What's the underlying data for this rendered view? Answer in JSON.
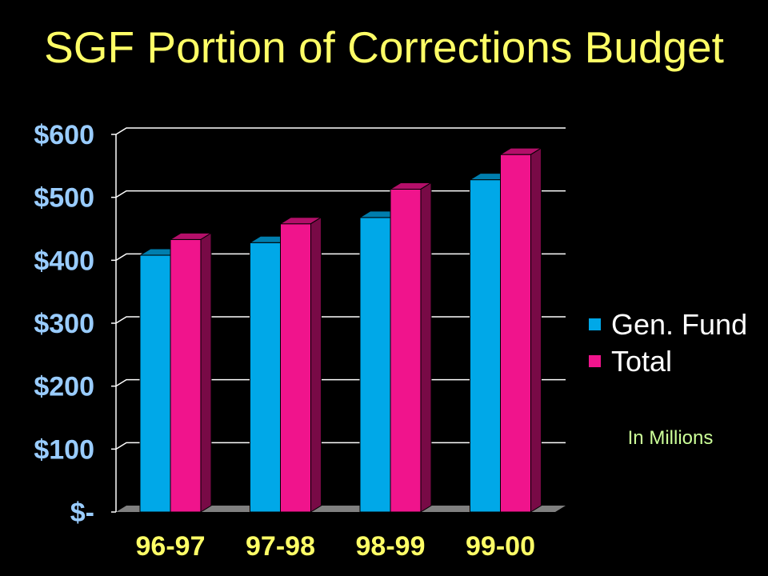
{
  "chart_data": {
    "type": "bar",
    "title": "SGF Portion of Corrections Budget",
    "categories": [
      "96-97",
      "97-98",
      "98-99",
      "99-00"
    ],
    "series": [
      {
        "name": "Gen. Fund",
        "values": [
          408,
          428,
          468,
          528
        ],
        "color": "#00A8E8"
      },
      {
        "name": "Total",
        "values": [
          433,
          458,
          513,
          568
        ],
        "color": "#F0148C"
      }
    ],
    "ylim": [
      0,
      600
    ],
    "yticks": [
      {
        "value": 0,
        "label": "$-"
      },
      {
        "value": 100,
        "label": "$100"
      },
      {
        "value": 200,
        "label": "$200"
      },
      {
        "value": 300,
        "label": "$300"
      },
      {
        "value": 400,
        "label": "$400"
      },
      {
        "value": 500,
        "label": "$500"
      },
      {
        "value": 600,
        "label": "$600"
      }
    ],
    "grid": true,
    "legend": "right",
    "annotation": "In Millions",
    "colors": {
      "background": "#000000",
      "title": "#FFFF66",
      "y_tick_labels": "#99CCFF",
      "x_tick_labels": "#FFFF66",
      "legend_text": "#FFFFFF",
      "annotation": "#CCFF99",
      "gridlines": "#FFFFFF",
      "floor": "#808080"
    }
  }
}
